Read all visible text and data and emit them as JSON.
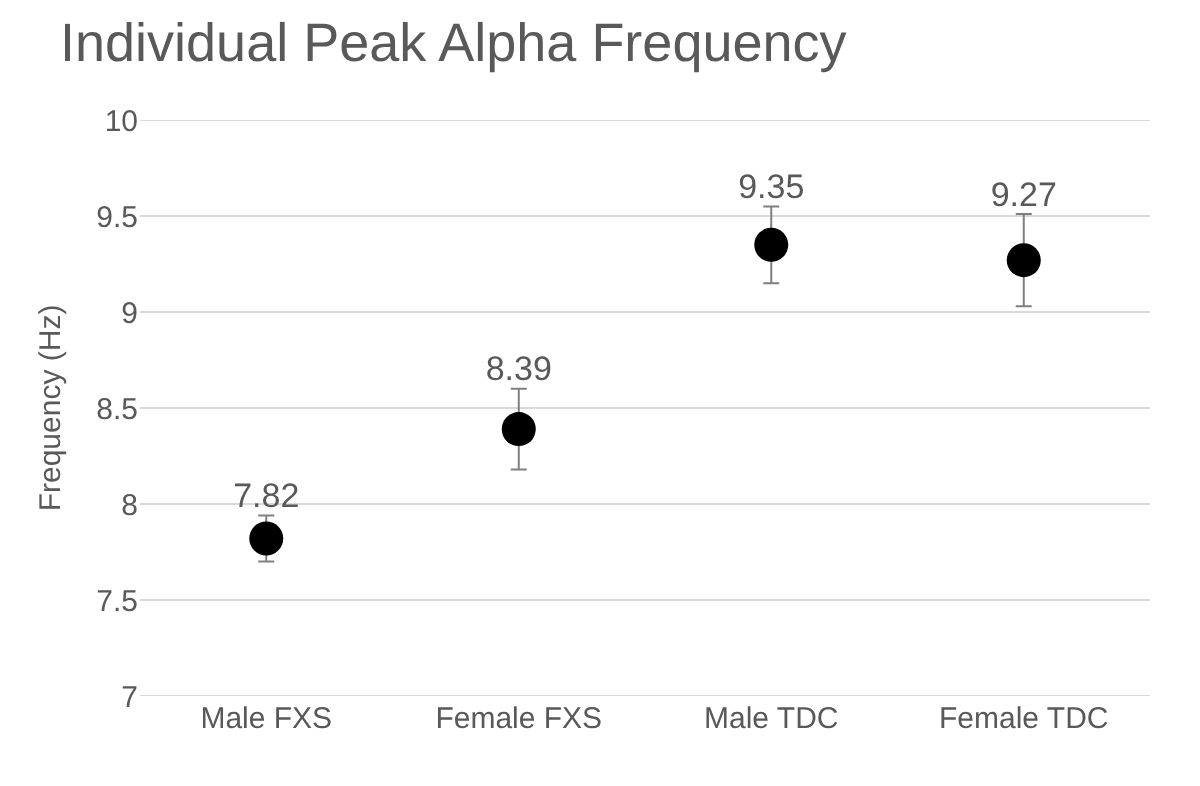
{
  "chart_data": {
    "type": "scatter",
    "title": "Individual Peak Alpha Frequency",
    "ylabel": "Frequency (Hz)",
    "categories": [
      "Male FXS",
      "Female FXS",
      "Male TDC",
      "Female TDC"
    ],
    "values": [
      7.82,
      8.39,
      9.35,
      9.27
    ],
    "errors": [
      0.12,
      0.21,
      0.2,
      0.24
    ],
    "color": "#000000",
    "marker": "circle",
    "data_labels": true,
    "ylim": [
      7,
      10
    ],
    "yticks": [
      7,
      7.5,
      8,
      8.5,
      9,
      9.5,
      10
    ],
    "grid": "y"
  }
}
